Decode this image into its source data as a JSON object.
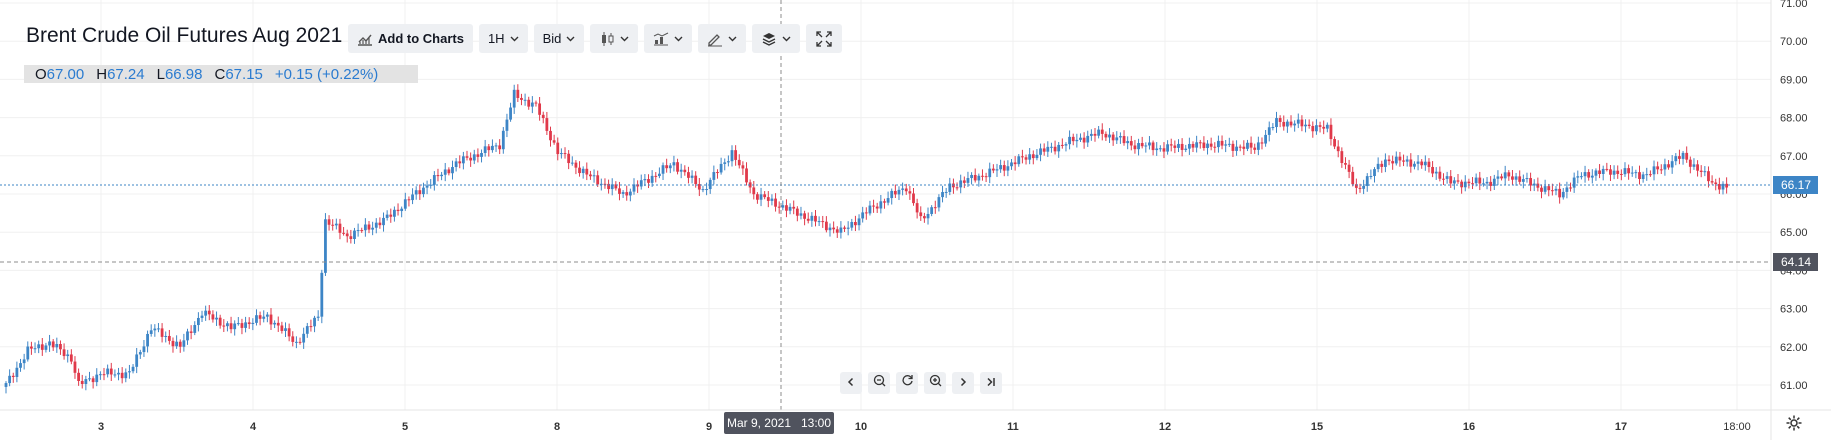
{
  "header": {
    "title": "Brent Crude Oil Futures Aug 2021",
    "toolbar": {
      "add_to_charts": "Add to Charts",
      "interval": "1H",
      "price_type": "Bid"
    }
  },
  "ohlc": {
    "o_label": "O",
    "o": "67.00",
    "h_label": "H",
    "h": "67.24",
    "l_label": "L",
    "l": "66.98",
    "c_label": "C",
    "c": "67.15",
    "change": "+0.15 (+0.22%)"
  },
  "crosshair_label": "Mar 9, 2021   13:00",
  "icons": [
    "indicators-icon",
    "candle-type-icon",
    "compare-icon",
    "drawing-tools-icon",
    "layers-icon",
    "fullscreen-icon",
    "scroll-left-icon",
    "zoom-out-icon",
    "reset-icon",
    "zoom-in-icon",
    "scroll-right-icon",
    "scroll-to-end-icon",
    "settings-gear-icon"
  ],
  "colors": {
    "up": "#3d85c6",
    "down": "#e0394a",
    "price_tag": "#3d85c6",
    "crosshair_tag": "#50535e"
  },
  "chart_data": {
    "type": "candlestick",
    "title": "Brent Crude Oil Futures Aug 2021",
    "x_ticks": [
      "3",
      "4",
      "5",
      "8",
      "9",
      "10",
      "11",
      "12",
      "15",
      "16",
      "17",
      "18:00"
    ],
    "y_ticks": [
      "61.00",
      "62.00",
      "63.00",
      "64.00",
      "65.00",
      "66.00",
      "67.00",
      "68.00",
      "69.00",
      "70.00",
      "71.00"
    ],
    "ylim": [
      60.5,
      71.0
    ],
    "last_price": "66.17",
    "crosshair_price": "64.14",
    "grid": true,
    "anchors": [
      [
        0,
        61.0
      ],
      [
        6,
        61.9
      ],
      [
        12,
        62.1
      ],
      [
        18,
        61.7
      ],
      [
        20,
        61.0
      ],
      [
        26,
        61.3
      ],
      [
        34,
        61.3
      ],
      [
        40,
        62.5
      ],
      [
        48,
        62.0
      ],
      [
        54,
        62.9
      ],
      [
        62,
        62.5
      ],
      [
        72,
        62.8
      ],
      [
        80,
        62.1
      ],
      [
        86,
        62.8
      ],
      [
        88,
        65.3
      ],
      [
        94,
        64.9
      ],
      [
        104,
        65.3
      ],
      [
        114,
        66.1
      ],
      [
        124,
        66.8
      ],
      [
        136,
        67.3
      ],
      [
        140,
        68.6
      ],
      [
        146,
        68.3
      ],
      [
        152,
        67.1
      ],
      [
        160,
        66.5
      ],
      [
        170,
        66.0
      ],
      [
        184,
        66.8
      ],
      [
        192,
        66.1
      ],
      [
        200,
        67.1
      ],
      [
        206,
        66.0
      ],
      [
        218,
        65.5
      ],
      [
        230,
        65.0
      ],
      [
        238,
        65.6
      ],
      [
        248,
        66.2
      ],
      [
        252,
        65.3
      ],
      [
        260,
        66.2
      ],
      [
        272,
        66.6
      ],
      [
        282,
        67.0
      ],
      [
        294,
        67.4
      ],
      [
        302,
        67.6
      ],
      [
        310,
        67.3
      ],
      [
        318,
        67.2
      ],
      [
        332,
        67.3
      ],
      [
        344,
        67.2
      ],
      [
        350,
        67.9
      ],
      [
        358,
        67.8
      ],
      [
        364,
        67.7
      ],
      [
        372,
        66.1
      ],
      [
        380,
        66.9
      ],
      [
        390,
        66.8
      ],
      [
        398,
        66.3
      ],
      [
        408,
        66.3
      ],
      [
        414,
        66.5
      ],
      [
        422,
        66.2
      ],
      [
        428,
        66.0
      ],
      [
        434,
        66.5
      ],
      [
        442,
        66.6
      ],
      [
        452,
        66.5
      ],
      [
        462,
        67.0
      ],
      [
        470,
        66.3
      ],
      [
        474,
        66.17
      ]
    ]
  }
}
